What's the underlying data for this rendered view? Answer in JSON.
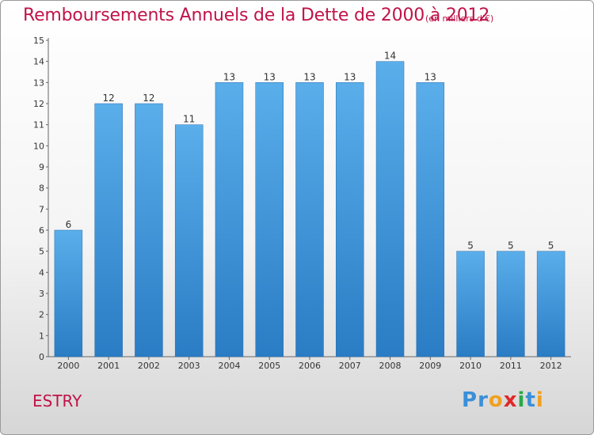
{
  "header": {
    "title": "Remboursements Annuels de la Dette de 2000 à 2012",
    "unit": "(en milliers d'€)"
  },
  "footer": {
    "commune": "ESTRY",
    "logo_letters": [
      {
        "ch": "P",
        "color": "#3a8fd8"
      },
      {
        "ch": "r",
        "color": "#3a8fd8"
      },
      {
        "ch": "o",
        "color": "#f0a020"
      },
      {
        "ch": "x",
        "color": "#e02828"
      },
      {
        "ch": "i",
        "color": "#2aa84a"
      },
      {
        "ch": "t",
        "color": "#3a8fd8"
      },
      {
        "ch": "i",
        "color": "#f0a020"
      }
    ]
  },
  "chart_data": {
    "type": "bar",
    "categories": [
      "2000",
      "2001",
      "2002",
      "2003",
      "2004",
      "2005",
      "2006",
      "2007",
      "2008",
      "2009",
      "2010",
      "2011",
      "2012"
    ],
    "values": [
      6,
      12,
      12,
      11,
      13,
      13,
      13,
      13,
      14,
      13,
      5,
      5,
      5
    ],
    "data_labels": [
      "6",
      "12",
      "12",
      "11",
      "13",
      "13",
      "13",
      "13",
      "14",
      "13",
      "5",
      "5",
      "5"
    ],
    "y_ticks": [
      "0",
      "1",
      "2",
      "3",
      "4",
      "5",
      "6",
      "7",
      "8",
      "9",
      "10",
      "11",
      "12",
      "13",
      "14",
      "15"
    ],
    "ylim": [
      0,
      15
    ],
    "grid": false,
    "bar_color": "#3d93d9"
  }
}
